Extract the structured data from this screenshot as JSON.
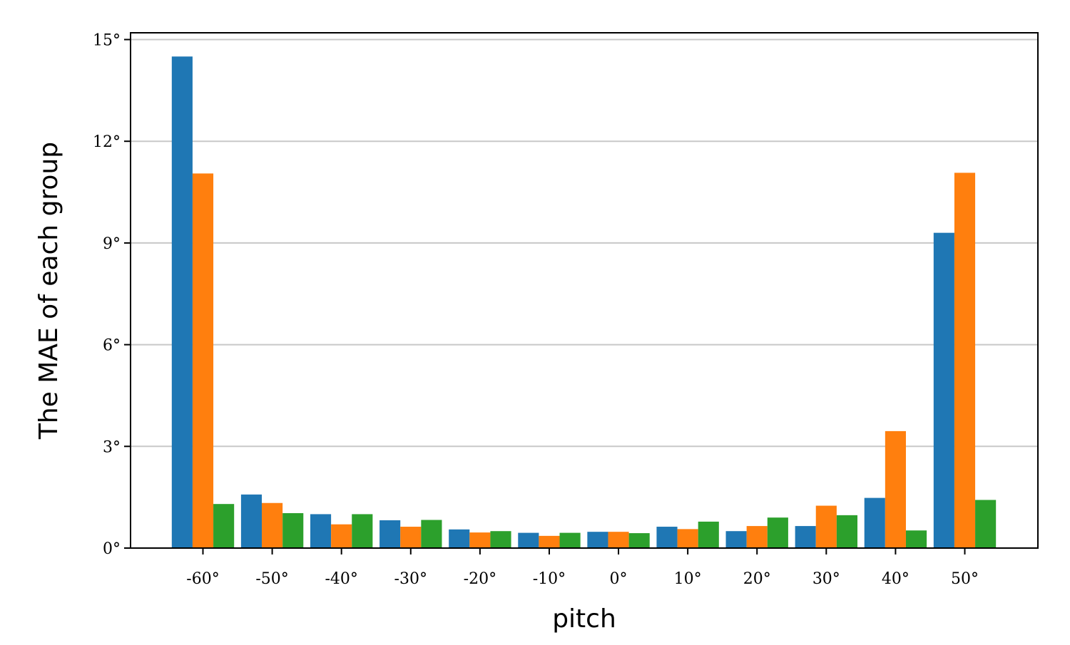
{
  "chart_data": {
    "type": "bar",
    "title": "",
    "xlabel": "pitch",
    "ylabel": "The MAE of each group",
    "categories": [
      "-60°",
      "-50°",
      "-40°",
      "-30°",
      "-20°",
      "-10°",
      "0°",
      "10°",
      "20°",
      "30°",
      "40°",
      "50°"
    ],
    "series": [
      {
        "color": "#1f77b4",
        "values": [
          14.5,
          1.58,
          1.0,
          0.82,
          0.55,
          0.45,
          0.48,
          0.63,
          0.5,
          0.65,
          1.48,
          9.3
        ]
      },
      {
        "color": "#ff7f0e",
        "values": [
          11.05,
          1.33,
          0.7,
          0.63,
          0.46,
          0.36,
          0.48,
          0.56,
          0.65,
          1.25,
          3.45,
          11.07
        ]
      },
      {
        "color": "#2ca02c",
        "values": [
          1.3,
          1.03,
          1.0,
          0.83,
          0.5,
          0.45,
          0.44,
          0.78,
          0.9,
          0.97,
          0.52,
          1.42
        ]
      }
    ],
    "yticks": [
      0,
      3,
      6,
      9,
      12,
      15
    ],
    "ytick_labels": [
      "0°",
      "3°",
      "6°",
      "9°",
      "12°",
      "15°"
    ],
    "ylim": [
      0,
      15.2
    ],
    "grid": "horizontal",
    "legend": "none"
  }
}
